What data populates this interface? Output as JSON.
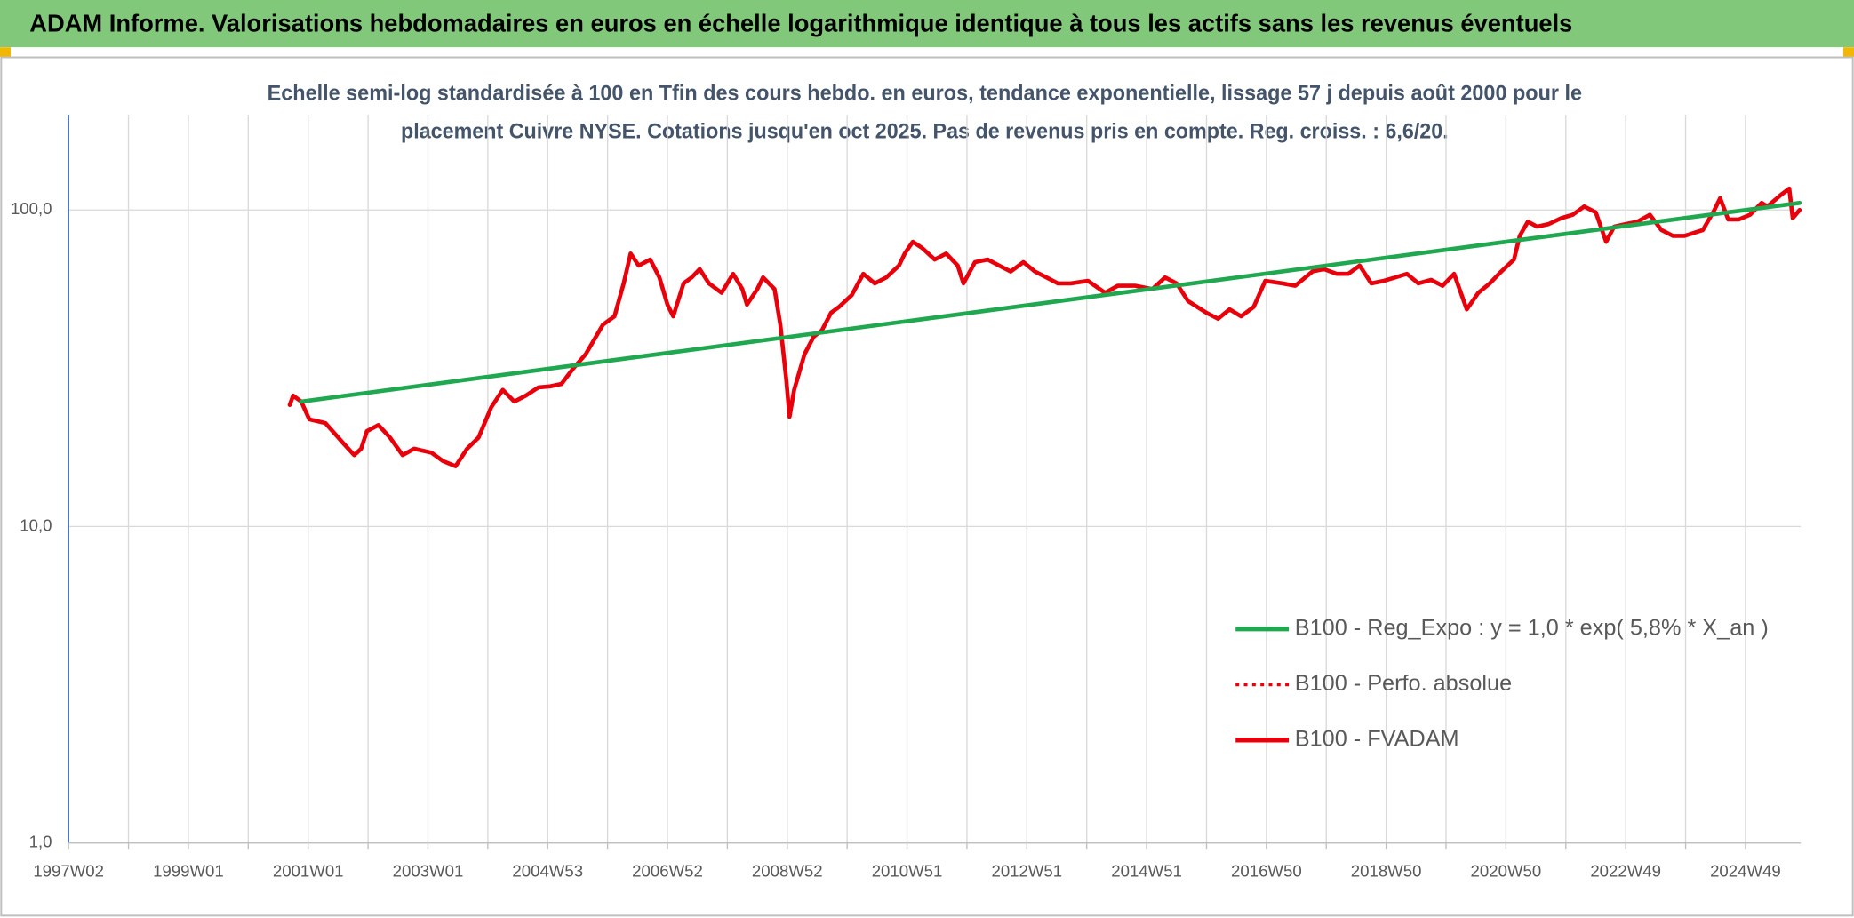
{
  "chart_data": {
    "type": "line",
    "title": "ADAM Informe. Valorisations hebdomadaires en euros en échelle logarithmique identique à tous les actifs sans les revenus éventuels",
    "subtitle": [
      "Echelle semi-log standardisée à 100 en Tfin des cours hebdo. en euros, tendance exponentielle, lissage 57 j depuis août 2000 pour le",
      "placement Cuivre NYSE. Cotations jusqu'en oct 2025. Pas de revenus pris en compte. Reg. croiss. : 6,6/20."
    ],
    "log_y": true,
    "grid": true,
    "ylim": [
      1,
      200
    ],
    "yticks": [
      {
        "value": 1,
        "label": "1,0"
      },
      {
        "value": 10,
        "label": "10,0"
      },
      {
        "value": 100,
        "label": "100,0"
      }
    ],
    "xlim": [
      0,
      1504
    ],
    "xticks": [
      {
        "value": 0,
        "label": "1997W02"
      },
      {
        "value": 104,
        "label": "1999W01"
      },
      {
        "value": 208,
        "label": "2001W01"
      },
      {
        "value": 312,
        "label": "2003W01"
      },
      {
        "value": 416,
        "label": "2004W53"
      },
      {
        "value": 520,
        "label": "2006W52"
      },
      {
        "value": 624,
        "label": "2008W52"
      },
      {
        "value": 728,
        "label": "2010W51"
      },
      {
        "value": 832,
        "label": "2012W51"
      },
      {
        "value": 936,
        "label": "2014W51"
      },
      {
        "value": 1040,
        "label": "2016W50"
      },
      {
        "value": 1144,
        "label": "2018W50"
      },
      {
        "value": 1248,
        "label": "2020W50"
      },
      {
        "value": 1352,
        "label": "2022W49"
      },
      {
        "value": 1456,
        "label": "2024W49"
      }
    ],
    "legend": "right",
    "series": [
      {
        "name": "B100 - Reg_Expo : y = 1,0 * exp( 5,8% *  X_an )",
        "color": "#1fa84f",
        "x": [
          202,
          1503
        ],
        "values": [
          24.8,
          105.3
        ]
      },
      {
        "name": "B100 - Perfo. absolue",
        "color": "#e8000b",
        "dash": "dotted",
        "x": [],
        "values": []
      },
      {
        "name": "B100 - FVADAM",
        "color": "#e8000b",
        "x": [
          192,
          195,
          202,
          209,
          223,
          238,
          248,
          254,
          259,
          269,
          279,
          290,
          300,
          315,
          325,
          336,
          346,
          356,
          367,
          377,
          387,
          397,
          408,
          418,
          428,
          438,
          449,
          464,
          474,
          482,
          488,
          495,
          505,
          513,
          520,
          525,
          534,
          541,
          548,
          556,
          567,
          577,
          585,
          589,
          598,
          603,
          613,
          618,
          623,
          626,
          630,
          639,
          647,
          654,
          662,
          669,
          680,
          690,
          700,
          710,
          721,
          726,
          733,
          741,
          752,
          762,
          772,
          777,
          787,
          798,
          808,
          818,
          829,
          839,
          849,
          859,
          870,
          885,
          900,
          911,
          926,
          941,
          952,
          962,
          972,
          988,
          998,
          1008,
          1018,
          1029,
          1039,
          1054,
          1065,
          1080,
          1090,
          1101,
          1111,
          1121,
          1131,
          1142,
          1152,
          1162,
          1172,
          1183,
          1193,
          1203,
          1214,
          1224,
          1234,
          1244,
          1255,
          1260,
          1267,
          1275,
          1285,
          1296,
          1306,
          1316,
          1326,
          1335,
          1342,
          1352,
          1362,
          1373,
          1383,
          1393,
          1403,
          1419,
          1429,
          1434,
          1441,
          1450,
          1460,
          1470,
          1475,
          1487,
          1494,
          1497,
          1503
        ],
        "values": [
          24.2,
          25.9,
          24.8,
          21.8,
          21.2,
          18.4,
          16.8,
          17.6,
          20.0,
          20.9,
          19.1,
          16.8,
          17.6,
          17.1,
          16.1,
          15.5,
          17.6,
          19.1,
          23.8,
          27.0,
          24.8,
          25.9,
          27.5,
          27.7,
          28.2,
          31.5,
          35.0,
          43.4,
          46.1,
          58.6,
          72.8,
          66.7,
          69.7,
          61.2,
          50.2,
          46.1,
          58.6,
          61.2,
          65.0,
          58.6,
          54.7,
          62.8,
          56.2,
          50.2,
          56.2,
          61.2,
          56.2,
          43.4,
          29.5,
          22.2,
          27.0,
          35.0,
          39.8,
          41.6,
          47.3,
          49.4,
          53.8,
          62.8,
          58.6,
          61.2,
          66.7,
          72.8,
          79.3,
          75.9,
          69.7,
          72.8,
          66.7,
          58.6,
          68.4,
          69.7,
          66.7,
          63.9,
          68.4,
          63.9,
          61.2,
          58.6,
          58.6,
          59.7,
          54.7,
          57.6,
          57.6,
          56.2,
          61.2,
          58.6,
          51.5,
          47.3,
          45.3,
          48.5,
          46.1,
          49.4,
          59.7,
          58.6,
          57.6,
          63.9,
          65.0,
          62.8,
          62.8,
          66.7,
          58.6,
          59.7,
          61.2,
          62.8,
          58.6,
          60.1,
          57.6,
          62.8,
          48.5,
          54.7,
          58.6,
          63.9,
          69.7,
          82.8,
          91.8,
          88.6,
          90.2,
          94.2,
          96.6,
          102.6,
          98.3,
          79.3,
          88.6,
          90.2,
          91.8,
          96.6,
          86.4,
          82.8,
          82.8,
          86.4,
          100,
          109.0,
          93.3,
          93.3,
          96.6,
          105.3,
          102.6,
          111.8,
          116.8,
          94.2,
          100
        ]
      }
    ]
  }
}
